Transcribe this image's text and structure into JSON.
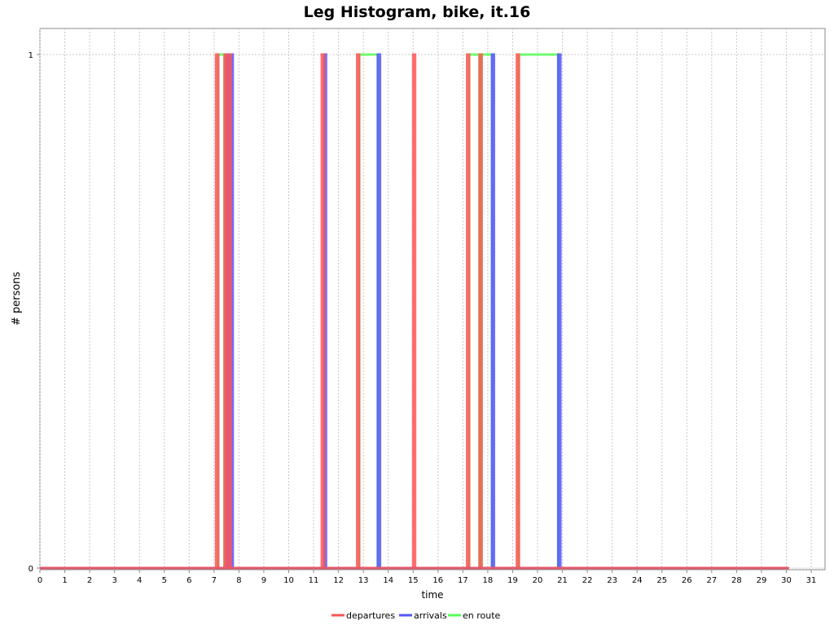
{
  "chart_data": {
    "type": "line",
    "title": "Leg Histogram, bike, it.16",
    "xlabel": "time",
    "ylabel": "# persons",
    "xlim": [
      0,
      31.5
    ],
    "ylim": [
      0,
      1.05
    ],
    "x_ticks": [
      0,
      1,
      2,
      3,
      4,
      5,
      6,
      7,
      8,
      9,
      10,
      11,
      12,
      13,
      14,
      15,
      16,
      17,
      18,
      19,
      20,
      21,
      22,
      23,
      24,
      25,
      26,
      27,
      28,
      29,
      30,
      31
    ],
    "y_ticks": [
      0,
      1
    ],
    "grid": true,
    "legend_position": "bottom",
    "series": [
      {
        "name": "departures",
        "color": "#ff5555",
        "pulses": [
          [
            7.08,
            7.17
          ],
          [
            7.42,
            7.5
          ],
          [
            7.58,
            7.67
          ],
          [
            11.33,
            11.42
          ],
          [
            12.75,
            12.83
          ],
          [
            15.0,
            15.08
          ],
          [
            17.17,
            17.25
          ],
          [
            17.67,
            17.75
          ],
          [
            19.17,
            19.25
          ]
        ]
      },
      {
        "name": "arrivals",
        "color": "#5555ff",
        "pulses": [
          [
            7.5,
            7.58
          ],
          [
            7.67,
            7.75
          ],
          [
            11.42,
            11.5
          ],
          [
            13.58,
            13.67
          ],
          [
            18.17,
            18.25
          ],
          [
            20.83,
            20.92
          ]
        ]
      },
      {
        "name": "en route",
        "color": "#55ff55",
        "pulses": [
          [
            7.17,
            7.42
          ],
          [
            12.83,
            13.58
          ],
          [
            17.25,
            17.67
          ],
          [
            17.75,
            18.17
          ],
          [
            19.25,
            20.83
          ]
        ]
      }
    ],
    "x_data_end": 30.1
  }
}
